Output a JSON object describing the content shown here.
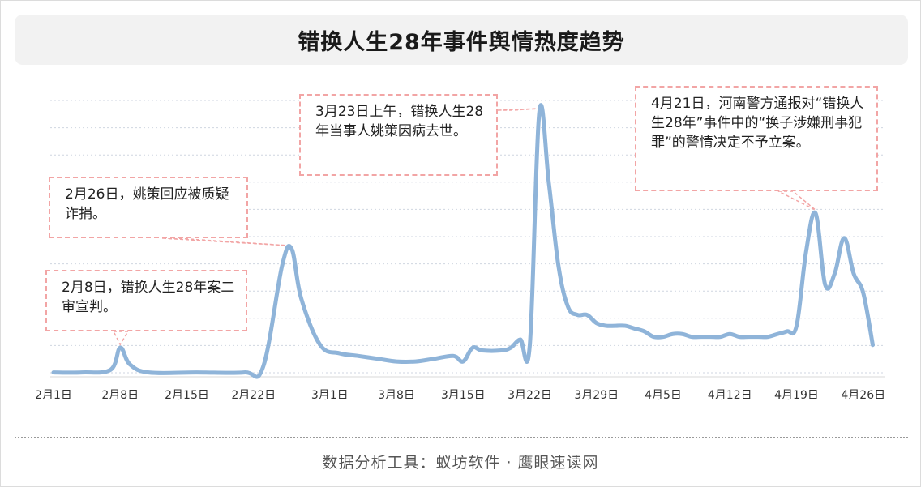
{
  "title": "错换人生28年事件舆情热度趋势",
  "footer": "数据分析工具：蚁坊软件 · 鹰眼速读网",
  "annotations": [
    {
      "date": "2月8日",
      "text": "2月8日，错换人生28年案二审宣判。"
    },
    {
      "date": "2月26日",
      "text": "2月26日，姚策回应被质疑诈捐。"
    },
    {
      "date": "3月23日",
      "text": "3月23日上午，错换人生28年当事人姚策因病去世。"
    },
    {
      "date": "4月21日",
      "text": "4月21日，河南警方通报对“错换人生28年”事件中的“换子涉嫌刑事犯罪”的警情决定不予立案。"
    }
  ],
  "chart_data": {
    "type": "line",
    "title": "错换人生28年事件舆情热度趋势",
    "xlabel": "",
    "ylabel": "",
    "x_ticks": [
      "2月1日",
      "2月8日",
      "2月15日",
      "2月22日",
      "3月1日",
      "3月8日",
      "3月15日",
      "3月22日",
      "3月29日",
      "4月5日",
      "4月12日",
      "4月19日",
      "4月26日"
    ],
    "y_axis_labels_shown": false,
    "grid": "horizontal dotted",
    "series": [
      {
        "color": "#8fb4d9",
        "points": [
          [
            "2月1日",
            1
          ],
          [
            "2月4日",
            1
          ],
          [
            "2月7日",
            2
          ],
          [
            "2月8日",
            10
          ],
          [
            "2月9日",
            4
          ],
          [
            "2月11日",
            1
          ],
          [
            "2月16日",
            1
          ],
          [
            "2月21日",
            1
          ],
          [
            "2月23日",
            3
          ],
          [
            "2月25日",
            40
          ],
          [
            "2月26日",
            46
          ],
          [
            "2月27日",
            28
          ],
          [
            "2月29日",
            11
          ],
          [
            "3月2日",
            8
          ],
          [
            "3月4日",
            7
          ],
          [
            "3月6日",
            6
          ],
          [
            "3月8日",
            5
          ],
          [
            "3月10日",
            5
          ],
          [
            "3月12日",
            6
          ],
          [
            "3月14日",
            7
          ],
          [
            "3月15日",
            5
          ],
          [
            "3月16日",
            10
          ],
          [
            "3月17日",
            9
          ],
          [
            "3月19日",
            9
          ],
          [
            "3月20日",
            10
          ],
          [
            "3月21日",
            13
          ],
          [
            "3月22日",
            11
          ],
          [
            "3月23日",
            96
          ],
          [
            "3月24日",
            70
          ],
          [
            "3月25日",
            40
          ],
          [
            "3月26日",
            25
          ],
          [
            "3月27日",
            22
          ],
          [
            "3月28日",
            22
          ],
          [
            "3月29日",
            19
          ],
          [
            "3月30日",
            18
          ],
          [
            "3月31日",
            18
          ],
          [
            "4月1日",
            18
          ],
          [
            "4月2日",
            17
          ],
          [
            "4月3日",
            16
          ],
          [
            "4月4日",
            14
          ],
          [
            "4月5日",
            14
          ],
          [
            "4月6日",
            15
          ],
          [
            "4月7日",
            15
          ],
          [
            "4月8日",
            14
          ],
          [
            "4月9日",
            14
          ],
          [
            "4月10日",
            14
          ],
          [
            "4月11日",
            14
          ],
          [
            "4月12日",
            15
          ],
          [
            "4月13日",
            14
          ],
          [
            "4月14日",
            14
          ],
          [
            "4月15日",
            14
          ],
          [
            "4月16日",
            14
          ],
          [
            "4月17日",
            15
          ],
          [
            "4月18日",
            16
          ],
          [
            "4月19日",
            18
          ],
          [
            "4月20日",
            45
          ],
          [
            "4月21日",
            59
          ],
          [
            "4月22日",
            33
          ],
          [
            "4月23日",
            37
          ],
          [
            "4月24日",
            50
          ],
          [
            "4月25日",
            37
          ],
          [
            "4月26日",
            30
          ],
          [
            "4月27日",
            11
          ]
        ]
      }
    ]
  }
}
